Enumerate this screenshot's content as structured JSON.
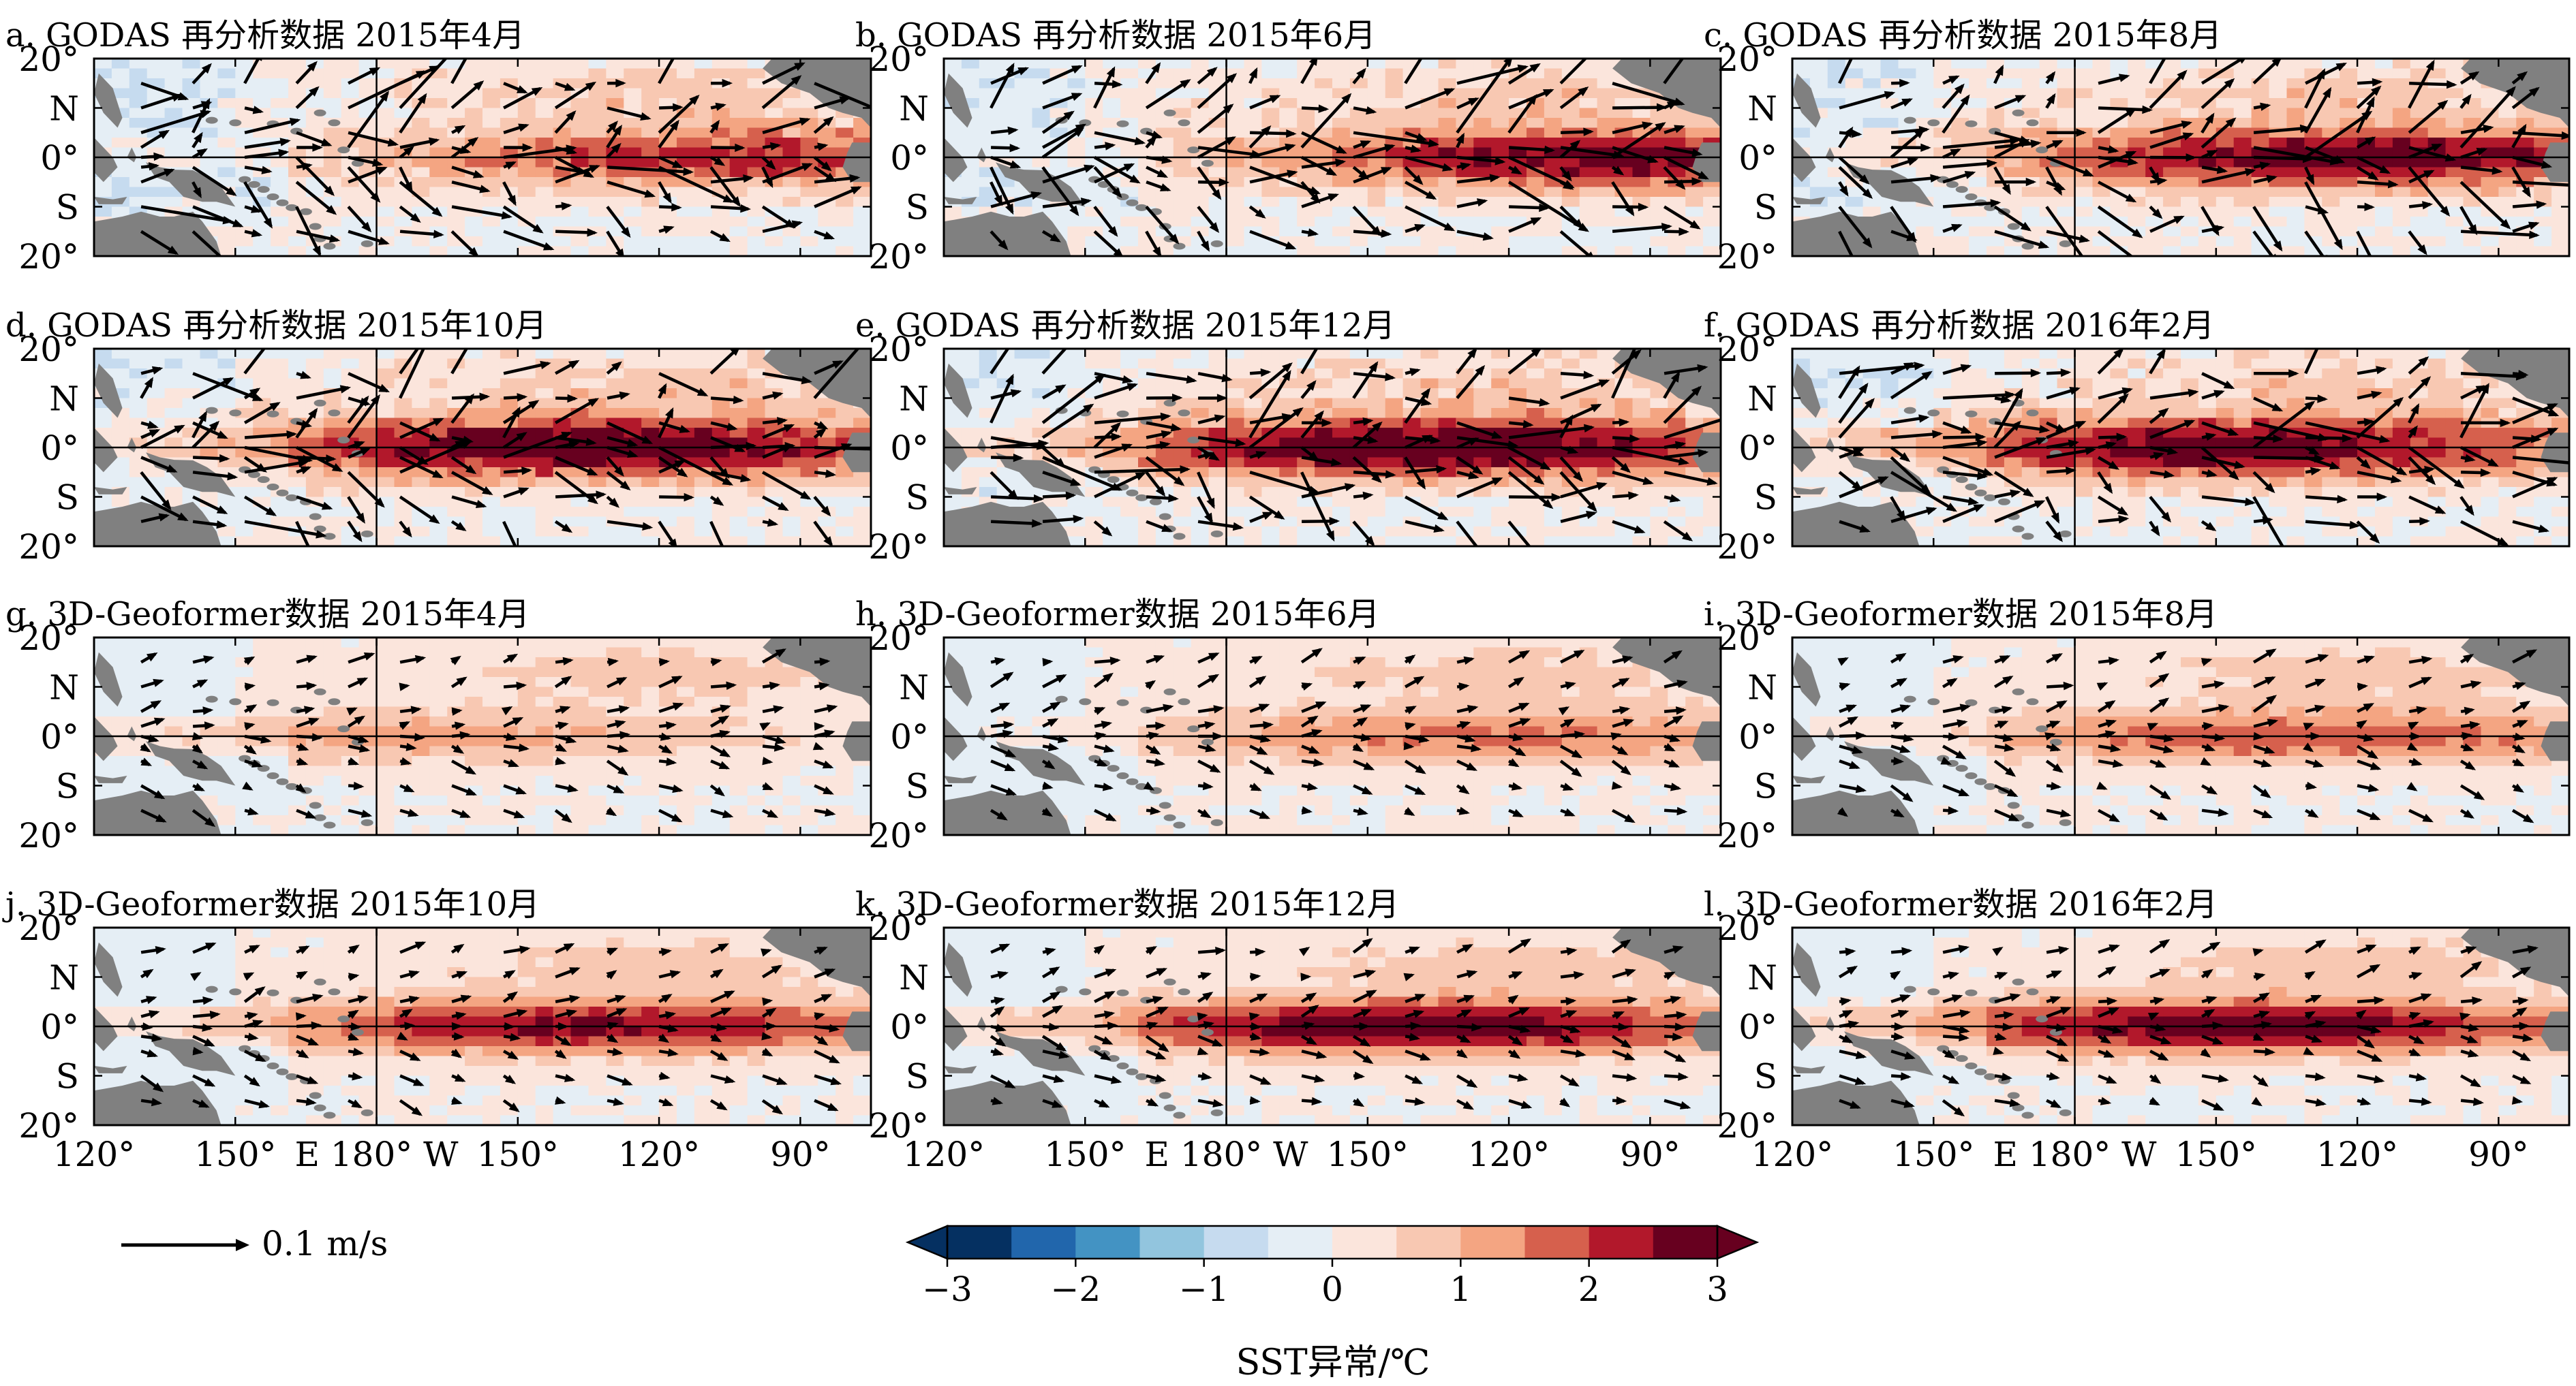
{
  "figure": {
    "panels": [
      {
        "title": "a. GODAS 再分析数据 2015年4月",
        "dataset": "GODAS",
        "month": "2015-04",
        "warm_peak_lon": 260,
        "intensity": 2.2
      },
      {
        "title": "b. GODAS 再分析数据 2015年6月",
        "dataset": "GODAS",
        "month": "2015-06",
        "warm_peak_lon": 265,
        "intensity": 2.8
      },
      {
        "title": "c. GODAS 再分析数据 2015年8月",
        "dataset": "GODAS",
        "month": "2015-08",
        "warm_peak_lon": 240,
        "intensity": 3.0
      },
      {
        "title": "d. GODAS 再分析数据 2015年10月",
        "dataset": "GODAS",
        "month": "2015-10",
        "warm_peak_lon": 225,
        "intensity": 3.2
      },
      {
        "title": "e. GODAS 再分析数据 2015年12月",
        "dataset": "GODAS",
        "month": "2015-12",
        "warm_peak_lon": 225,
        "intensity": 3.2
      },
      {
        "title": "f. GODAS 再分析数据 2016年2月",
        "dataset": "GODAS",
        "month": "2016-02",
        "warm_peak_lon": 215,
        "intensity": 3.0
      },
      {
        "title": "g. 3D-Geoformer数据 2015年4月",
        "dataset": "3D-Geoformer",
        "month": "2015-04",
        "warm_peak_lon": 190,
        "intensity": 1.2
      },
      {
        "title": "h. 3D-Geoformer数据 2015年6月",
        "dataset": "3D-Geoformer",
        "month": "2015-06",
        "warm_peak_lon": 235,
        "intensity": 1.6
      },
      {
        "title": "i. 3D-Geoformer数据 2015年8月",
        "dataset": "3D-Geoformer",
        "month": "2015-08",
        "warm_peak_lon": 230,
        "intensity": 1.9
      },
      {
        "title": "j. 3D-Geoformer数据 2015年10月",
        "dataset": "3D-Geoformer",
        "month": "2015-10",
        "warm_peak_lon": 225,
        "intensity": 2.6
      },
      {
        "title": "k. 3D-Geoformer数据 2015年12月",
        "dataset": "3D-Geoformer",
        "month": "2015-12",
        "warm_peak_lon": 220,
        "intensity": 3.0
      },
      {
        "title": "l. 3D-Geoformer数据 2016年2月",
        "dataset": "3D-Geoformer",
        "month": "2016-02",
        "warm_peak_lon": 215,
        "intensity": 2.9
      }
    ],
    "map_extent": {
      "lon": [
        120,
        285
      ],
      "lat": [
        -20,
        20
      ]
    },
    "lat_labels": [
      "20°",
      "N",
      "0°",
      "S",
      "20°"
    ],
    "lon_labels": [
      "120°",
      "150°",
      "E 180° W",
      "150°",
      "120°",
      "90°"
    ],
    "vector_key_label": "0.1 m/s",
    "vector_key_value": 0.1,
    "colorbar": {
      "title": "SST异常/℃",
      "ticks": [
        "−3",
        "−2",
        "−1",
        "0",
        "1",
        "2",
        "3"
      ],
      "levels": [
        -3,
        -2.5,
        -2,
        -1.5,
        -1,
        -0.5,
        0,
        0.5,
        1,
        1.5,
        2,
        2.5,
        3
      ],
      "colors": [
        "#053061",
        "#2166ac",
        "#4393c3",
        "#92c5de",
        "#c6dbef",
        "#e5eef5",
        "#fbe5dc",
        "#f8c8b2",
        "#f4a582",
        "#d6604d",
        "#b2182b",
        "#67001f"
      ],
      "extend": "both"
    },
    "colors": {
      "land": "#808080",
      "vector": "#000000",
      "axis": "#000000"
    }
  }
}
